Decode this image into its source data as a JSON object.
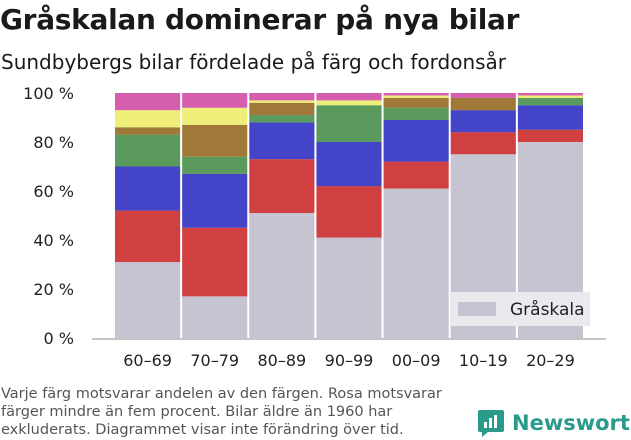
{
  "header": {
    "title": "Gråskalan dominerar på nya bilar",
    "subtitle": "Sundbybergs bilar fördelade på färg och fordonsår"
  },
  "footnote": {
    "lines": [
      "Varje färg motsvarar andelen av den färgen. Rosa motsvarar",
      "färger mindre än fem procent. Bilar äldre än 1960 har",
      "exkluderats. Diagrammet visar inte förändring över tid."
    ]
  },
  "brand": {
    "name": "Newsworthy",
    "icon": "newsworthy-logo-icon",
    "color": "#2a9a8a"
  },
  "chart_data": {
    "type": "bar",
    "stacked": true,
    "categories": [
      "60–69",
      "70–79",
      "80–89",
      "90–99",
      "00–09",
      "10–19",
      "20–29"
    ],
    "y_ticks": [
      "0 %",
      "20 %",
      "40 %",
      "60 %",
      "80 %",
      "100 %"
    ],
    "ylim": [
      0,
      100
    ],
    "grid": true,
    "legend": {
      "label": "Gråskala",
      "position": "bottom-right"
    },
    "series": [
      {
        "name": "Gråskala",
        "color": "#c6c4d0",
        "values": [
          31,
          17,
          51,
          41,
          61,
          75,
          80
        ]
      },
      {
        "color": "#d04040",
        "values": [
          21,
          28,
          22,
          21,
          11,
          9,
          5
        ]
      },
      {
        "color": "#4444c8",
        "values": [
          18,
          22,
          15,
          18,
          17,
          9,
          10
        ]
      },
      {
        "color": "#5a9a5c",
        "values": [
          13,
          7,
          3,
          15,
          5,
          0,
          3
        ]
      },
      {
        "color": "#a07838",
        "values": [
          3,
          13,
          5,
          0,
          4,
          5,
          0
        ]
      },
      {
        "color": "#eeee78",
        "values": [
          7,
          7,
          1,
          2,
          1,
          0,
          1
        ]
      },
      {
        "color": "#d55fae",
        "values": [
          7,
          6,
          3,
          3,
          1,
          2,
          1
        ]
      }
    ]
  }
}
